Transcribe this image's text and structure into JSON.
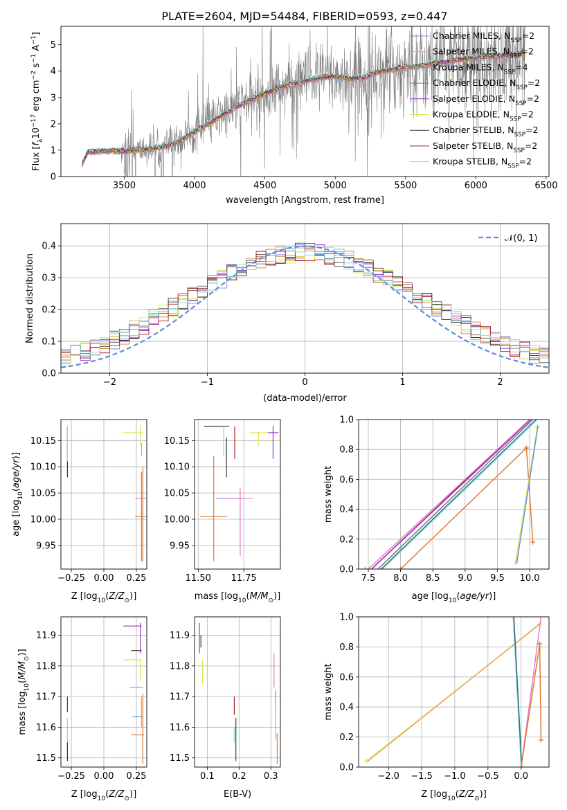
{
  "figure_title": "PLATE=2604, MJD=54484, FIBERID=0593, z=0.447",
  "colors": {
    "c0": "#6c8ee6",
    "c1": "#e8a35d",
    "c2": "#e0792e",
    "c3": "#787878",
    "c4": "#9b30c8",
    "c5": "#d6e84a",
    "c6": "#3a3a3a",
    "c7": "#a81c1c",
    "c8": "#80d8e0",
    "gauss": "#5b8bdc",
    "pink": "#e080c8",
    "teal": "#2e6e78"
  },
  "chart_data": [
    {
      "id": "spectrum",
      "type": "line",
      "xlabel": "wavelength [Angstrom, rest frame]",
      "ylabel_parts": [
        "Flux [",
        "f",
        "λ",
        "10",
        "−17",
        " erg cm",
        "−2",
        " s",
        "−1",
        " A",
        "−1",
        "]"
      ],
      "xlim": [
        3050,
        6520
      ],
      "ylim": [
        0,
        5.7
      ],
      "xticks": [
        3500,
        4000,
        4500,
        5000,
        5500,
        6000,
        6500
      ],
      "yticks": [
        0,
        1,
        2,
        3,
        4,
        5
      ],
      "grid": false,
      "legend_position": "top-right",
      "model_curve": {
        "x": [
          3200,
          3240,
          3300,
          3400,
          3500,
          3600,
          3700,
          3800,
          3900,
          4000,
          4100,
          4200,
          4300,
          4400,
          4500,
          4600,
          4700,
          4800,
          4900,
          5000,
          5100,
          5200,
          5300,
          5400,
          5500,
          5600,
          5700,
          5800,
          5900,
          6000,
          6100,
          6200,
          6350
        ],
        "y": [
          0.45,
          0.92,
          0.95,
          0.98,
          0.96,
          1.0,
          1.05,
          1.15,
          1.35,
          1.7,
          2.0,
          2.35,
          2.65,
          2.9,
          3.15,
          3.35,
          3.5,
          3.65,
          3.75,
          3.8,
          3.7,
          3.75,
          3.95,
          4.05,
          4.15,
          4.2,
          4.3,
          4.35,
          4.45,
          4.5,
          4.55,
          4.6,
          4.65
        ]
      },
      "data_range": [
        3200,
        6350
      ],
      "legend": [
        {
          "base": "Chabrier MILES, N",
          "sub": "SSP",
          "end": "=2",
          "color_key": "c0"
        },
        {
          "base": "Salpeter MILES, N",
          "sub": "SSP",
          "end": "=2",
          "color_key": "c1"
        },
        {
          "base": "Kroupa MILES, N",
          "sub": "SSP",
          "end": "=4",
          "color_key": "c2"
        },
        {
          "base": "Chabrier ELODIE, N",
          "sub": "SSP",
          "end": "=2",
          "color_key": "c3"
        },
        {
          "base": "Salpeter ELODIE, N",
          "sub": "SSP",
          "end": "=2",
          "color_key": "c4"
        },
        {
          "base": "Kroupa ELODIE, N",
          "sub": "SSP",
          "end": "=2",
          "color_key": "c5"
        },
        {
          "base": "Chabrier STELIB, N",
          "sub": "SSP",
          "end": "=2",
          "color_key": "c6"
        },
        {
          "base": "Salpeter STELIB, N",
          "sub": "SSP",
          "end": "=2",
          "color_key": "c7"
        },
        {
          "base": "Kroupa STELIB, N",
          "sub": "SSP",
          "end": "=2",
          "color_key": "c8"
        }
      ]
    },
    {
      "id": "residuals",
      "type": "histogram",
      "xlabel": "(data-model)/error",
      "ylabel": "Normed distribution",
      "xlim": [
        -2.5,
        2.5
      ],
      "ylim": [
        0,
        0.47
      ],
      "xticks": [
        -2,
        -1,
        0,
        1,
        2
      ],
      "yticks": [
        0.0,
        0.1,
        0.2,
        0.3,
        0.4
      ],
      "grid": true,
      "legend_position": "top-right",
      "legend_label_text": "(0, 1)",
      "gaussian": {
        "mean": 0,
        "sigma": 1
      },
      "bin_width": 0.1,
      "bin_start": -2.5,
      "series_colors": [
        "c0",
        "c1",
        "c2",
        "c3",
        "c4",
        "c5",
        "c6",
        "c7",
        "c8"
      ]
    },
    {
      "id": "age_vs_Z",
      "type": "errorbar",
      "xlabel": "Z [log10(Z/Z⊙)]",
      "ylabel": "age  [log10(age/yr)]",
      "xlim": [
        -0.33,
        0.33
      ],
      "ylim": [
        9.905,
        10.19
      ],
      "xticks": [
        -0.25,
        0.0,
        0.25
      ],
      "yticks": [
        9.95,
        10.0,
        10.05,
        10.1,
        10.15
      ],
      "grid": true,
      "points": [
        {
          "x": -0.28,
          "y": 10.13,
          "xerr": 0.0,
          "ylo": 10.08,
          "yhi": 10.175,
          "c": "c6"
        },
        {
          "x": -0.28,
          "y": 10.14,
          "xerr": 0.0,
          "ylo": 10.11,
          "yhi": 10.178,
          "c": "c8"
        },
        {
          "x": 0.22,
          "y": 10.165,
          "xerr": 0.07,
          "ylo": 10.165,
          "yhi": 10.165,
          "c": "c5"
        },
        {
          "x": 0.28,
          "y": 10.165,
          "xerr": 0.02,
          "ylo": 10.14,
          "yhi": 10.178,
          "c": "c5"
        },
        {
          "x": 0.29,
          "y": 10.13,
          "xerr": 0.0,
          "ylo": 10.12,
          "yhi": 10.145,
          "c": "c1"
        },
        {
          "x": 0.29,
          "y": 10.04,
          "xerr": 0.05,
          "ylo": 10.04,
          "yhi": 10.04,
          "c": "pink"
        },
        {
          "x": 0.29,
          "y": 10.005,
          "xerr": 0.05,
          "ylo": 9.92,
          "yhi": 10.09,
          "c": "c2"
        },
        {
          "x": 0.3,
          "y": 10.1,
          "xerr": 0.0,
          "ylo": 9.92,
          "yhi": 10.1,
          "c": "c2"
        }
      ]
    },
    {
      "id": "age_vs_mass",
      "type": "errorbar",
      "xlabel": "mass [log10(M/M⊙)]",
      "ylabel": "",
      "xlim": [
        11.48,
        11.95
      ],
      "ylim": [
        9.905,
        10.19
      ],
      "xticks": [
        11.5,
        11.75
      ],
      "yticks": [
        9.95,
        10.0,
        10.05,
        10.1,
        10.15
      ],
      "grid": true,
      "points": [
        {
          "x": 11.585,
          "y": 10.005,
          "xerr": 0.075,
          "ylo": 9.92,
          "yhi": 10.12,
          "c": "c2"
        },
        {
          "x": 11.67,
          "y": 10.04,
          "xerr": 0.07,
          "ylo": 10.04,
          "yhi": 10.04,
          "c": "c0"
        },
        {
          "x": 11.73,
          "y": 10.04,
          "xerr": 0.07,
          "ylo": 9.93,
          "yhi": 10.06,
          "c": "pink"
        },
        {
          "x": 11.6,
          "y": 10.177,
          "xerr": 0.07,
          "ylo": 10.177,
          "yhi": 10.177,
          "c": "c6"
        },
        {
          "x": 11.64,
          "y": 10.177,
          "xerr": 0.0,
          "ylo": 10.12,
          "yhi": 10.177,
          "c": "c8"
        },
        {
          "x": 11.655,
          "y": 10.13,
          "xerr": 0.0,
          "ylo": 10.08,
          "yhi": 10.155,
          "c": "c6"
        },
        {
          "x": 11.7,
          "y": 10.177,
          "xerr": 0.0,
          "ylo": 10.115,
          "yhi": 10.177,
          "c": "c7"
        },
        {
          "x": 11.83,
          "y": 10.165,
          "xerr": 0.05,
          "ylo": 10.14,
          "yhi": 10.165,
          "c": "c5"
        },
        {
          "x": 11.91,
          "y": 10.165,
          "xerr": 0.03,
          "ylo": 10.115,
          "yhi": 10.178,
          "c": "c4"
        }
      ]
    },
    {
      "id": "cum_age",
      "type": "line",
      "xlabel": "age  [log10(age/yr)]",
      "ylabel": "mass weight",
      "xlim": [
        7.35,
        10.3
      ],
      "ylim": [
        0,
        1
      ],
      "xticks": [
        7.5,
        8.0,
        8.5,
        9.0,
        9.5,
        10.0
      ],
      "yticks": [
        0.0,
        0.2,
        0.4,
        0.6,
        0.8,
        1.0
      ],
      "grid": true,
      "lines": [
        {
          "x": [
            7.65,
            10.05
          ],
          "y": [
            0,
            1
          ],
          "c": "c3"
        },
        {
          "x": [
            7.7,
            10.1
          ],
          "y": [
            0,
            1
          ],
          "c": "teal"
        },
        {
          "x": [
            7.72,
            10.12
          ],
          "y": [
            0,
            1
          ],
          "c": "c8"
        },
        {
          "x": [
            7.55,
            10.0
          ],
          "y": [
            0,
            1
          ],
          "c": "c7"
        },
        {
          "x": [
            7.5,
            10.0
          ],
          "y": [
            0,
            1
          ],
          "c": "pink"
        },
        {
          "x": [
            7.55,
            10.02
          ],
          "y": [
            0,
            1
          ],
          "c": "c4"
        },
        {
          "x": [
            8.0,
            9.95,
            10.05
          ],
          "y": [
            0,
            0.81,
            0.18
          ],
          "c": "c2",
          "markers": true
        },
        {
          "x": [
            9.78,
            10.12
          ],
          "y": [
            0.04,
            0.95
          ],
          "c": "c5",
          "markers": true
        },
        {
          "x": [
            9.8,
            10.13
          ],
          "y": [
            0.04,
            0.96
          ],
          "c": "c0"
        },
        {
          "x": [
            7.45,
            7.52
          ],
          "y": [
            0,
            0
          ],
          "c": "c1",
          "markers": true
        }
      ]
    },
    {
      "id": "mass_vs_Z",
      "type": "errorbar",
      "xlabel": "Z [log10(Z/Z⊙)]",
      "ylabel": "mass [log10(M/M⊙)]",
      "xlim": [
        -0.33,
        0.33
      ],
      "ylim": [
        11.47,
        11.96
      ],
      "xticks": [
        -0.25,
        0.0,
        0.25
      ],
      "yticks": [
        11.5,
        11.6,
        11.7,
        11.8,
        11.9
      ],
      "grid": true,
      "points": [
        {
          "x": -0.28,
          "y": 11.68,
          "xerr": 0.0,
          "ylo": 11.65,
          "yhi": 11.7,
          "c": "c7"
        },
        {
          "x": -0.28,
          "y": 11.58,
          "xerr": 0.0,
          "ylo": 11.54,
          "yhi": 11.63,
          "c": "c8"
        },
        {
          "x": -0.28,
          "y": 11.55,
          "xerr": 0.0,
          "ylo": 11.49,
          "yhi": 11.55,
          "c": "c6"
        },
        {
          "x": 0.22,
          "y": 11.93,
          "xerr": 0.07,
          "ylo": 11.93,
          "yhi": 11.93,
          "c": "c4"
        },
        {
          "x": 0.28,
          "y": 11.93,
          "xerr": 0.0,
          "ylo": 11.84,
          "yhi": 11.94,
          "c": "c4"
        },
        {
          "x": 0.25,
          "y": 11.85,
          "xerr": 0.04,
          "ylo": 11.85,
          "yhi": 11.85,
          "c": "c6"
        },
        {
          "x": 0.22,
          "y": 11.82,
          "xerr": 0.07,
          "ylo": 11.82,
          "yhi": 11.82,
          "c": "c5"
        },
        {
          "x": 0.28,
          "y": 11.8,
          "xerr": 0.0,
          "ylo": 11.75,
          "yhi": 11.82,
          "c": "c5"
        },
        {
          "x": 0.25,
          "y": 11.73,
          "xerr": 0.05,
          "ylo": 11.73,
          "yhi": 11.73,
          "c": "pink"
        },
        {
          "x": 0.29,
          "y": 11.65,
          "xerr": 0.0,
          "ylo": 11.6,
          "yhi": 11.7,
          "c": "c1"
        },
        {
          "x": 0.26,
          "y": 11.635,
          "xerr": 0.04,
          "ylo": 11.635,
          "yhi": 11.635,
          "c": "c0"
        },
        {
          "x": 0.26,
          "y": 11.575,
          "xerr": 0.05,
          "ylo": 11.575,
          "yhi": 11.575,
          "c": "c2"
        },
        {
          "x": 0.3,
          "y": 11.6,
          "xerr": 0.0,
          "ylo": 11.48,
          "yhi": 11.71,
          "c": "c2"
        }
      ]
    },
    {
      "id": "mass_vs_ebv",
      "type": "errorbar",
      "xlabel": "E(B-V)",
      "ylabel": "",
      "xlim": [
        0.06,
        0.33
      ],
      "ylim": [
        11.47,
        11.96
      ],
      "xticks": [
        0.1,
        0.2,
        0.3
      ],
      "yticks": [
        11.5,
        11.6,
        11.7,
        11.8,
        11.9
      ],
      "grid": true,
      "points": [
        {
          "x": 0.075,
          "y": 11.9,
          "xerr": 0.0,
          "ylo": 11.84,
          "yhi": 11.94,
          "c": "c4"
        },
        {
          "x": 0.08,
          "y": 11.88,
          "xerr": 0.0,
          "ylo": 11.86,
          "yhi": 11.9,
          "c": "c6"
        },
        {
          "x": 0.085,
          "y": 11.78,
          "xerr": 0.0,
          "ylo": 11.74,
          "yhi": 11.82,
          "c": "c5"
        },
        {
          "x": 0.185,
          "y": 11.68,
          "xerr": 0.0,
          "ylo": 11.64,
          "yhi": 11.7,
          "c": "c7"
        },
        {
          "x": 0.185,
          "y": 11.57,
          "xerr": 0.0,
          "ylo": 11.55,
          "yhi": 11.6,
          "c": "c8"
        },
        {
          "x": 0.19,
          "y": 11.56,
          "xerr": 0.0,
          "ylo": 11.49,
          "yhi": 11.63,
          "c": "c6"
        },
        {
          "x": 0.31,
          "y": 11.78,
          "xerr": 0.0,
          "ylo": 11.73,
          "yhi": 11.84,
          "c": "pink"
        },
        {
          "x": 0.315,
          "y": 11.68,
          "xerr": 0.0,
          "ylo": 11.64,
          "yhi": 11.72,
          "c": "c0"
        },
        {
          "x": 0.315,
          "y": 11.6,
          "xerr": 0.0,
          "ylo": 11.56,
          "yhi": 11.68,
          "c": "c1"
        },
        {
          "x": 0.32,
          "y": 11.55,
          "xerr": 0.0,
          "ylo": 11.48,
          "yhi": 11.58,
          "c": "c2"
        }
      ]
    },
    {
      "id": "cum_Z",
      "type": "line",
      "xlabel": "Z [log10(Z/Z⊙)]",
      "ylabel": "mass weight",
      "xlim": [
        -2.45,
        0.42
      ],
      "ylim": [
        0,
        1
      ],
      "xticks": [
        -2.0,
        -1.5,
        -1.0,
        -0.5,
        0.0
      ],
      "yticks": [
        0.0,
        0.2,
        0.4,
        0.6,
        0.8,
        1.0
      ],
      "grid": true,
      "lines": [
        {
          "x": [
            -2.33,
            0.28
          ],
          "y": [
            0.04,
            0.95
          ],
          "c": "c5",
          "markers": true
        },
        {
          "x": [
            -2.31,
            0.3
          ],
          "y": [
            0.04,
            0.96
          ],
          "c": "c1"
        },
        {
          "x": [
            -0.12,
            0.0
          ],
          "y": [
            1.0,
            0.0
          ],
          "c": "c8"
        },
        {
          "x": [
            -0.11,
            0.01
          ],
          "y": [
            1.0,
            0.0
          ],
          "c": "teal"
        },
        {
          "x": [
            0.0,
            0.3
          ],
          "y": [
            0.0,
            1.0
          ],
          "c": "pink"
        },
        {
          "x": [
            0.0,
            0.28,
            0.3
          ],
          "y": [
            0.0,
            0.82,
            0.18
          ],
          "c": "c2",
          "markers": true
        }
      ]
    }
  ]
}
